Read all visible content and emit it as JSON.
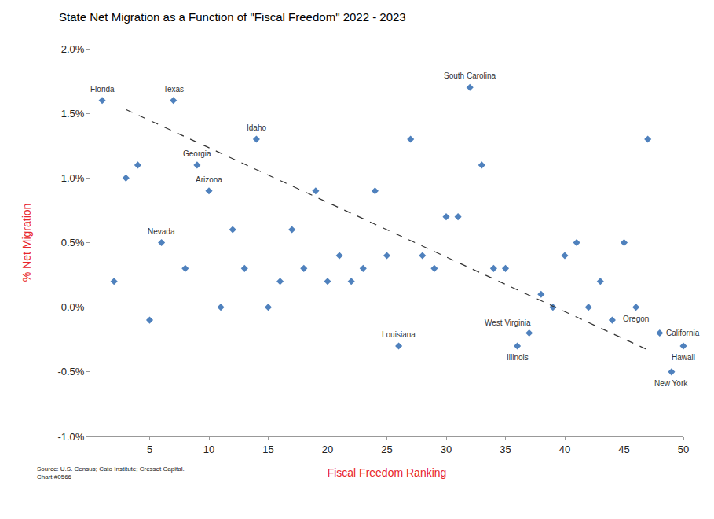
{
  "chart_data": {
    "type": "scatter",
    "title": "State Net Migration as a Function of \"Fiscal Freedom\" 2022 - 2023",
    "x_label": "Fiscal Freedom Ranking",
    "y_label": "% Net Migration",
    "source": [
      "Source: U.S. Census; Cato Institute; Cresset Capital.",
      "Chart #0566"
    ],
    "xlim": [
      0,
      50
    ],
    "xticks": [
      5,
      10,
      15,
      20,
      25,
      30,
      35,
      40,
      45,
      50
    ],
    "ylim": [
      -1.0,
      2.0
    ],
    "yticks": [
      {
        "value": -1.0,
        "label": "-1.0%"
      },
      {
        "value": -0.5,
        "label": "-0.5%"
      },
      {
        "value": 0.0,
        "label": "0.0%"
      },
      {
        "value": 0.5,
        "label": "0.5%"
      },
      {
        "value": 1.0,
        "label": "1.0%"
      },
      {
        "value": 1.5,
        "label": "1.5%"
      },
      {
        "value": 2.0,
        "label": "2.0%"
      }
    ],
    "grid": false,
    "series": [
      {
        "type": "scatter",
        "marker": "diamond",
        "color": "#4f81bd",
        "x": [
          1,
          2,
          3,
          4,
          5,
          6,
          7,
          8,
          9,
          10,
          11,
          12,
          13,
          14,
          15,
          16,
          17,
          18,
          19,
          20,
          21,
          22,
          23,
          24,
          25,
          26,
          27,
          28,
          29,
          30,
          31,
          32,
          33,
          34,
          35,
          36,
          37,
          38,
          39,
          40,
          41,
          42,
          43,
          44,
          45,
          46,
          47,
          48,
          49,
          50
        ],
        "values": [
          1.6,
          0.2,
          1.0,
          1.1,
          -0.1,
          0.5,
          1.6,
          0.3,
          1.1,
          0.9,
          0.0,
          0.6,
          0.3,
          1.3,
          0.0,
          0.2,
          0.6,
          0.3,
          0.9,
          0.2,
          0.4,
          0.2,
          0.3,
          0.9,
          0.4,
          -0.3,
          1.3,
          0.4,
          0.3,
          0.7,
          0.7,
          1.7,
          1.1,
          0.3,
          0.3,
          -0.3,
          -0.2,
          0.1,
          0.0,
          0.4,
          0.5,
          0.0,
          0.2,
          -0.1,
          0.5,
          0.0,
          1.3,
          -0.2,
          -0.5,
          -0.3
        ],
        "labels": [
          "Florida",
          null,
          null,
          null,
          null,
          "Nevada",
          "Texas",
          null,
          "Georgia",
          "Arizona",
          null,
          null,
          null,
          "Idaho",
          null,
          null,
          null,
          null,
          null,
          null,
          null,
          null,
          null,
          null,
          null,
          "Louisiana",
          null,
          null,
          null,
          null,
          null,
          "South Carolina",
          null,
          null,
          null,
          "Illinois",
          "West Virginia",
          null,
          null,
          null,
          null,
          null,
          null,
          null,
          null,
          "Oregon",
          null,
          "California",
          "New York",
          "Hawaii"
        ]
      },
      {
        "type": "line",
        "line_style": "dashed",
        "color": "#333333",
        "x": [
          3,
          47
        ],
        "values": [
          1.53,
          -0.33
        ]
      }
    ]
  }
}
